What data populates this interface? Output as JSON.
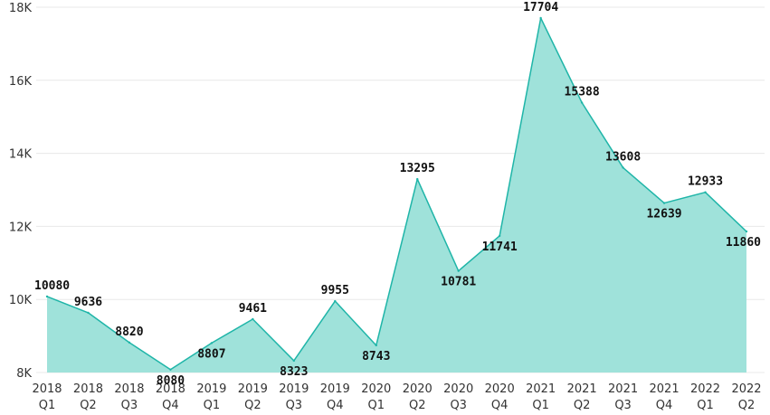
{
  "chart_data": {
    "type": "area",
    "title": "",
    "xlabel": "",
    "ylabel": "",
    "ylim": [
      8000,
      18000
    ],
    "yticks": [
      8000,
      10000,
      12000,
      14000,
      16000,
      18000
    ],
    "ytick_labels": [
      "8K",
      "10K",
      "12K",
      "14K",
      "16K",
      "18K"
    ],
    "grid": true,
    "legend": "none",
    "fill_color": "#9fe2da",
    "line_color": "#1fb5a8",
    "categories": [
      [
        "2018",
        "Q1"
      ],
      [
        "2018",
        "Q2"
      ],
      [
        "2018",
        "Q3"
      ],
      [
        "2018",
        "Q4"
      ],
      [
        "2019",
        "Q1"
      ],
      [
        "2019",
        "Q2"
      ],
      [
        "2019",
        "Q3"
      ],
      [
        "2019",
        "Q4"
      ],
      [
        "2020",
        "Q1"
      ],
      [
        "2020",
        "Q2"
      ],
      [
        "2020",
        "Q3"
      ],
      [
        "2020",
        "Q4"
      ],
      [
        "2021",
        "Q1"
      ],
      [
        "2021",
        "Q2"
      ],
      [
        "2021",
        "Q3"
      ],
      [
        "2021",
        "Q4"
      ],
      [
        "2022",
        "Q1"
      ],
      [
        "2022",
        "Q2"
      ]
    ],
    "values": [
      10080,
      9636,
      8820,
      8080,
      8807,
      9461,
      8323,
      9955,
      8743,
      13295,
      10781,
      11741,
      17704,
      15388,
      13608,
      12639,
      12933,
      11860
    ],
    "data_labels": [
      "10080",
      "9636",
      "8820",
      "8080",
      "8807",
      "9461",
      "8323",
      "9955",
      "8743",
      "13295",
      "10781",
      "11741",
      "17704",
      "15388",
      "13608",
      "12639",
      "12933",
      "11860"
    ]
  }
}
